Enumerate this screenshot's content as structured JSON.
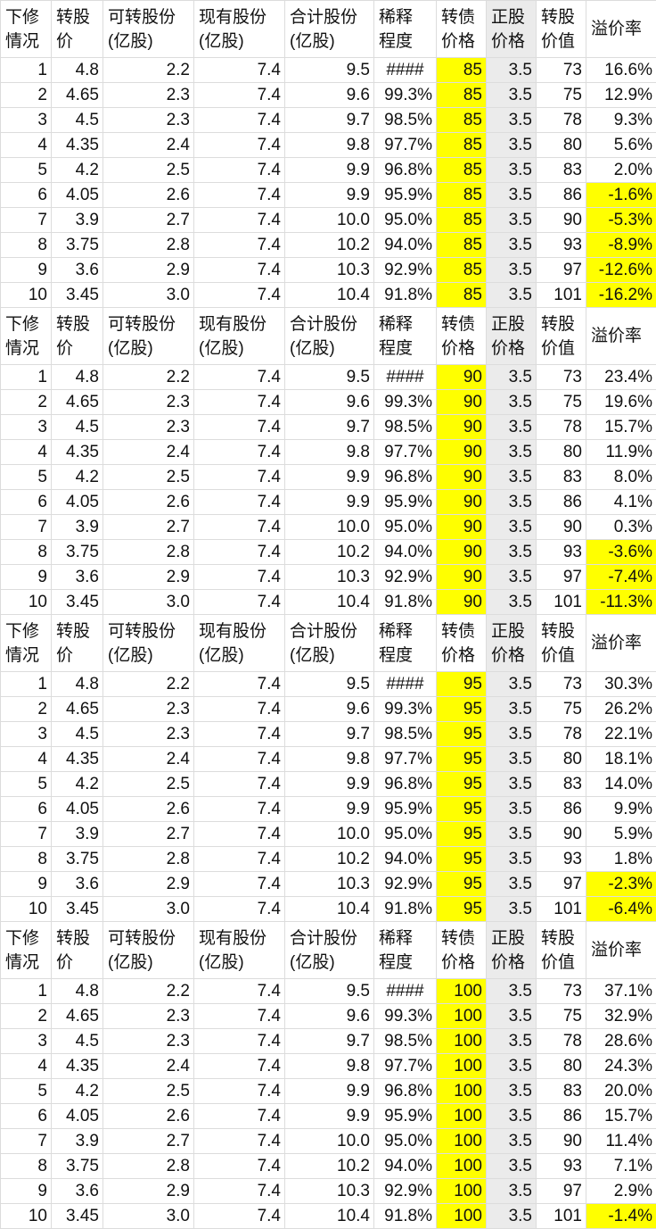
{
  "headers": [
    "下修\n情况",
    "转股\n价",
    "可转股份\n(亿股)",
    "现有股份\n(亿股)",
    "合计股份\n(亿股)",
    "稀释\n程度",
    "转债\n价格",
    "正股\n价格",
    "转股\n价值",
    "溢价率"
  ],
  "colors": {
    "highlight": "#ffff00",
    "stock_price_column": "#ebebeb"
  },
  "blocks": [
    {
      "bond_price": "85",
      "premium": [
        "16.6%",
        "12.9%",
        "9.3%",
        "5.6%",
        "2.0%",
        "-1.6%",
        "-5.3%",
        "-8.9%",
        "-12.6%",
        "-16.2%"
      ]
    },
    {
      "bond_price": "90",
      "premium": [
        "23.4%",
        "19.6%",
        "15.7%",
        "11.9%",
        "8.0%",
        "4.1%",
        "0.3%",
        "-3.6%",
        "-7.4%",
        "-11.3%"
      ]
    },
    {
      "bond_price": "95",
      "premium": [
        "30.3%",
        "26.2%",
        "22.1%",
        "18.1%",
        "14.0%",
        "9.9%",
        "5.9%",
        "1.8%",
        "-2.3%",
        "-6.4%"
      ]
    },
    {
      "bond_price": "100",
      "premium": [
        "37.1%",
        "32.9%",
        "28.6%",
        "24.3%",
        "20.0%",
        "15.7%",
        "11.4%",
        "7.1%",
        "2.9%",
        "-1.4%"
      ]
    }
  ],
  "rows": [
    [
      "1",
      "4.8",
      "2.2",
      "7.4",
      "9.5",
      "####",
      "3.5",
      "73"
    ],
    [
      "2",
      "4.65",
      "2.3",
      "7.4",
      "9.6",
      "99.3%",
      "3.5",
      "75"
    ],
    [
      "3",
      "4.5",
      "2.3",
      "7.4",
      "9.7",
      "98.5%",
      "3.5",
      "78"
    ],
    [
      "4",
      "4.35",
      "2.4",
      "7.4",
      "9.8",
      "97.7%",
      "3.5",
      "80"
    ],
    [
      "5",
      "4.2",
      "2.5",
      "7.4",
      "9.9",
      "96.8%",
      "3.5",
      "83"
    ],
    [
      "6",
      "4.05",
      "2.6",
      "7.4",
      "9.9",
      "95.9%",
      "3.5",
      "86"
    ],
    [
      "7",
      "3.9",
      "2.7",
      "7.4",
      "10.0",
      "95.0%",
      "3.5",
      "90"
    ],
    [
      "8",
      "3.75",
      "2.8",
      "7.4",
      "10.2",
      "94.0%",
      "3.5",
      "93"
    ],
    [
      "9",
      "3.6",
      "2.9",
      "7.4",
      "10.3",
      "92.9%",
      "3.5",
      "97"
    ],
    [
      "10",
      "3.45",
      "3.0",
      "7.4",
      "10.4",
      "91.8%",
      "3.5",
      "101"
    ]
  ]
}
